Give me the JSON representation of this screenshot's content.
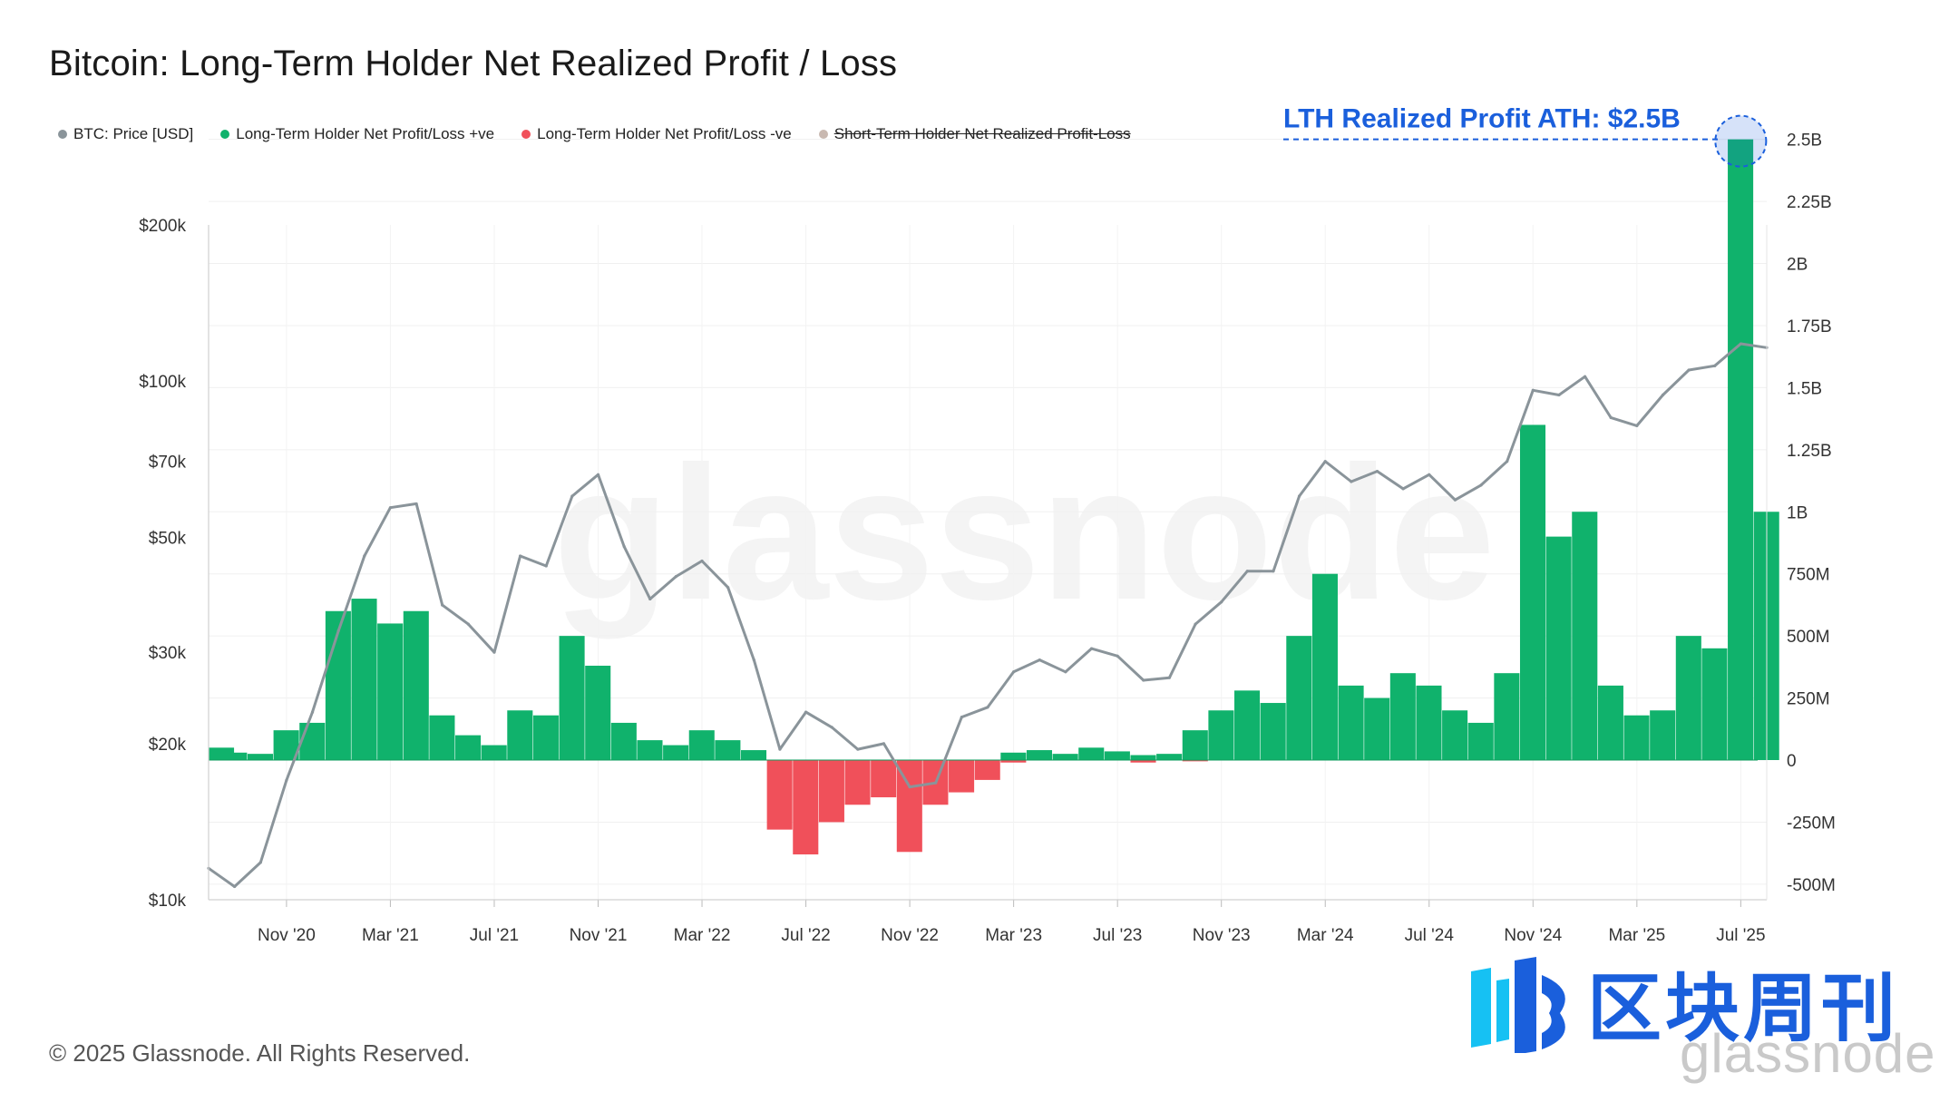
{
  "header": {
    "title": "Bitcoin: Long-Term Holder Net Realized Profit / Loss"
  },
  "legend": [
    {
      "label": "BTC: Price [USD]",
      "color": "#8a949a",
      "enabled": true
    },
    {
      "label": "Long-Term Holder Net Profit/Loss +ve",
      "color": "#10b26c",
      "enabled": true
    },
    {
      "label": "Long-Term Holder Net Profit/Loss -ve",
      "color": "#f0505a",
      "enabled": true
    },
    {
      "label": "Short-Term Holder Net Realized Profit-Loss",
      "color": "#c8b8b0",
      "enabled": false
    }
  ],
  "footer": {
    "copyright": "© 2025 Glassnode. All Rights Reserved."
  },
  "branding": {
    "cn_name": "区块周刊",
    "watermark": "glassnode",
    "logo_text": "glassnode"
  },
  "chart_data": {
    "type": "area",
    "x_ticks": [
      "Nov '20",
      "Mar '21",
      "Jul '21",
      "Nov '21",
      "Mar '22",
      "Jul '22",
      "Nov '22",
      "Mar '23",
      "Jul '23",
      "Nov '23",
      "Mar '24",
      "Jul '24",
      "Nov '24",
      "Mar '25",
      "Jul '25"
    ],
    "x_range": [
      "2020-08",
      "2025-08"
    ],
    "y_left": {
      "scale": "log",
      "range": [
        10000,
        200000
      ],
      "ticks": [
        {
          "value": 10000,
          "label": "$10k"
        },
        {
          "value": 20000,
          "label": "$20k"
        },
        {
          "value": 30000,
          "label": "$30k"
        },
        {
          "value": 50000,
          "label": "$50k"
        },
        {
          "value": 70000,
          "label": "$70k"
        },
        {
          "value": 100000,
          "label": "$100k"
        },
        {
          "value": 200000,
          "label": "$200k"
        }
      ]
    },
    "y_right": {
      "scale": "linear",
      "ticks": [
        {
          "value": -500000000,
          "label": "-500M"
        },
        {
          "value": -250000000,
          "label": "-250M"
        },
        {
          "value": 0,
          "label": "0"
        },
        {
          "value": 250000000,
          "label": "250M"
        },
        {
          "value": 500000000,
          "label": "500M"
        },
        {
          "value": 750000000,
          "label": "750M"
        },
        {
          "value": 1000000000,
          "label": "1B"
        },
        {
          "value": 1250000000,
          "label": "1.25B"
        },
        {
          "value": 1500000000,
          "label": "1.5B"
        },
        {
          "value": 1750000000,
          "label": "1.75B"
        },
        {
          "value": 2000000000,
          "label": "2B"
        },
        {
          "value": 2250000000,
          "label": "2.25B"
        },
        {
          "value": 2500000000,
          "label": "2.5B"
        }
      ]
    },
    "series": [
      {
        "name": "BTC: Price [USD]",
        "axis": "left",
        "points": [
          [
            "2020-08",
            11500
          ],
          [
            "2020-09",
            10600
          ],
          [
            "2020-10",
            11800
          ],
          [
            "2020-11",
            17000
          ],
          [
            "2020-12",
            23000
          ],
          [
            "2021-01",
            33000
          ],
          [
            "2021-02",
            46000
          ],
          [
            "2021-03",
            57000
          ],
          [
            "2021-04",
            58000
          ],
          [
            "2021-05",
            37000
          ],
          [
            "2021-06",
            34000
          ],
          [
            "2021-07",
            30000
          ],
          [
            "2021-08",
            46000
          ],
          [
            "2021-09",
            44000
          ],
          [
            "2021-10",
            60000
          ],
          [
            "2021-11",
            66000
          ],
          [
            "2021-12",
            48000
          ],
          [
            "2022-01",
            38000
          ],
          [
            "2022-02",
            42000
          ],
          [
            "2022-03",
            45000
          ],
          [
            "2022-04",
            40000
          ],
          [
            "2022-05",
            29000
          ],
          [
            "2022-06",
            19500
          ],
          [
            "2022-07",
            23000
          ],
          [
            "2022-08",
            21500
          ],
          [
            "2022-09",
            19500
          ],
          [
            "2022-10",
            20000
          ],
          [
            "2022-11",
            16500
          ],
          [
            "2022-12",
            16800
          ],
          [
            "2023-01",
            22500
          ],
          [
            "2023-02",
            23500
          ],
          [
            "2023-03",
            27500
          ],
          [
            "2023-04",
            29000
          ],
          [
            "2023-05",
            27500
          ],
          [
            "2023-06",
            30500
          ],
          [
            "2023-07",
            29500
          ],
          [
            "2023-08",
            26500
          ],
          [
            "2023-09",
            26800
          ],
          [
            "2023-10",
            34000
          ],
          [
            "2023-11",
            37500
          ],
          [
            "2023-12",
            43000
          ],
          [
            "2024-01",
            43000
          ],
          [
            "2024-02",
            60000
          ],
          [
            "2024-03",
            70000
          ],
          [
            "2024-04",
            64000
          ],
          [
            "2024-05",
            67000
          ],
          [
            "2024-06",
            62000
          ],
          [
            "2024-07",
            66000
          ],
          [
            "2024-08",
            59000
          ],
          [
            "2024-09",
            63000
          ],
          [
            "2024-10",
            70000
          ],
          [
            "2024-11",
            96000
          ],
          [
            "2024-12",
            94000
          ],
          [
            "2025-01",
            102000
          ],
          [
            "2025-02",
            85000
          ],
          [
            "2025-03",
            82000
          ],
          [
            "2025-04",
            94000
          ],
          [
            "2025-05",
            105000
          ],
          [
            "2025-06",
            107000
          ],
          [
            "2025-07",
            118000
          ],
          [
            "2025-08",
            116000
          ]
        ]
      },
      {
        "name": "Long-Term Holder Net Profit/Loss +ve",
        "axis": "right",
        "points": [
          [
            "2020-08",
            50000000
          ],
          [
            "2020-09",
            30000000
          ],
          [
            "2020-10",
            25000000
          ],
          [
            "2020-11",
            120000000
          ],
          [
            "2020-12",
            150000000
          ],
          [
            "2021-01",
            600000000
          ],
          [
            "2021-02",
            650000000
          ],
          [
            "2021-03",
            550000000
          ],
          [
            "2021-04",
            600000000
          ],
          [
            "2021-05",
            180000000
          ],
          [
            "2021-06",
            100000000
          ],
          [
            "2021-07",
            60000000
          ],
          [
            "2021-08",
            200000000
          ],
          [
            "2021-09",
            180000000
          ],
          [
            "2021-10",
            500000000
          ],
          [
            "2021-11",
            380000000
          ],
          [
            "2021-12",
            150000000
          ],
          [
            "2022-01",
            80000000
          ],
          [
            "2022-02",
            60000000
          ],
          [
            "2022-03",
            120000000
          ],
          [
            "2022-04",
            80000000
          ],
          [
            "2022-05",
            40000000
          ],
          [
            "2022-06",
            0
          ],
          [
            "2022-07",
            0
          ],
          [
            "2022-08",
            0
          ],
          [
            "2022-09",
            0
          ],
          [
            "2022-10",
            0
          ],
          [
            "2022-11",
            0
          ],
          [
            "2022-12",
            0
          ],
          [
            "2023-01",
            0
          ],
          [
            "2023-02",
            0
          ],
          [
            "2023-03",
            30000000
          ],
          [
            "2023-04",
            40000000
          ],
          [
            "2023-05",
            25000000
          ],
          [
            "2023-06",
            50000000
          ],
          [
            "2023-07",
            35000000
          ],
          [
            "2023-08",
            20000000
          ],
          [
            "2023-09",
            25000000
          ],
          [
            "2023-10",
            120000000
          ],
          [
            "2023-11",
            200000000
          ],
          [
            "2023-12",
            280000000
          ],
          [
            "2024-01",
            230000000
          ],
          [
            "2024-02",
            500000000
          ],
          [
            "2024-03",
            750000000
          ],
          [
            "2024-04",
            300000000
          ],
          [
            "2024-05",
            250000000
          ],
          [
            "2024-06",
            350000000
          ],
          [
            "2024-07",
            300000000
          ],
          [
            "2024-08",
            200000000
          ],
          [
            "2024-09",
            150000000
          ],
          [
            "2024-10",
            350000000
          ],
          [
            "2024-11",
            1350000000
          ],
          [
            "2024-12",
            900000000
          ],
          [
            "2025-01",
            1000000000
          ],
          [
            "2025-02",
            300000000
          ],
          [
            "2025-03",
            180000000
          ],
          [
            "2025-04",
            200000000
          ],
          [
            "2025-05",
            500000000
          ],
          [
            "2025-06",
            450000000
          ],
          [
            "2025-07",
            2500000000
          ],
          [
            "2025-08",
            1000000000
          ]
        ]
      },
      {
        "name": "Long-Term Holder Net Profit/Loss -ve",
        "axis": "right",
        "points": [
          [
            "2022-06",
            -280000000
          ],
          [
            "2022-07",
            -380000000
          ],
          [
            "2022-08",
            -250000000
          ],
          [
            "2022-09",
            -180000000
          ],
          [
            "2022-10",
            -150000000
          ],
          [
            "2022-11",
            -370000000
          ],
          [
            "2022-12",
            -180000000
          ],
          [
            "2023-01",
            -130000000
          ],
          [
            "2023-02",
            -80000000
          ],
          [
            "2023-03",
            -10000000
          ],
          [
            "2023-08",
            -10000000
          ],
          [
            "2023-10",
            -5000000
          ]
        ]
      }
    ],
    "annotations": [
      {
        "text": "LTH Realized Profit ATH: $2.5B",
        "x": "2025-07",
        "y": 2500000000,
        "color": "#1a5fdc"
      }
    ],
    "grid": true,
    "legend_position": "top-left"
  }
}
